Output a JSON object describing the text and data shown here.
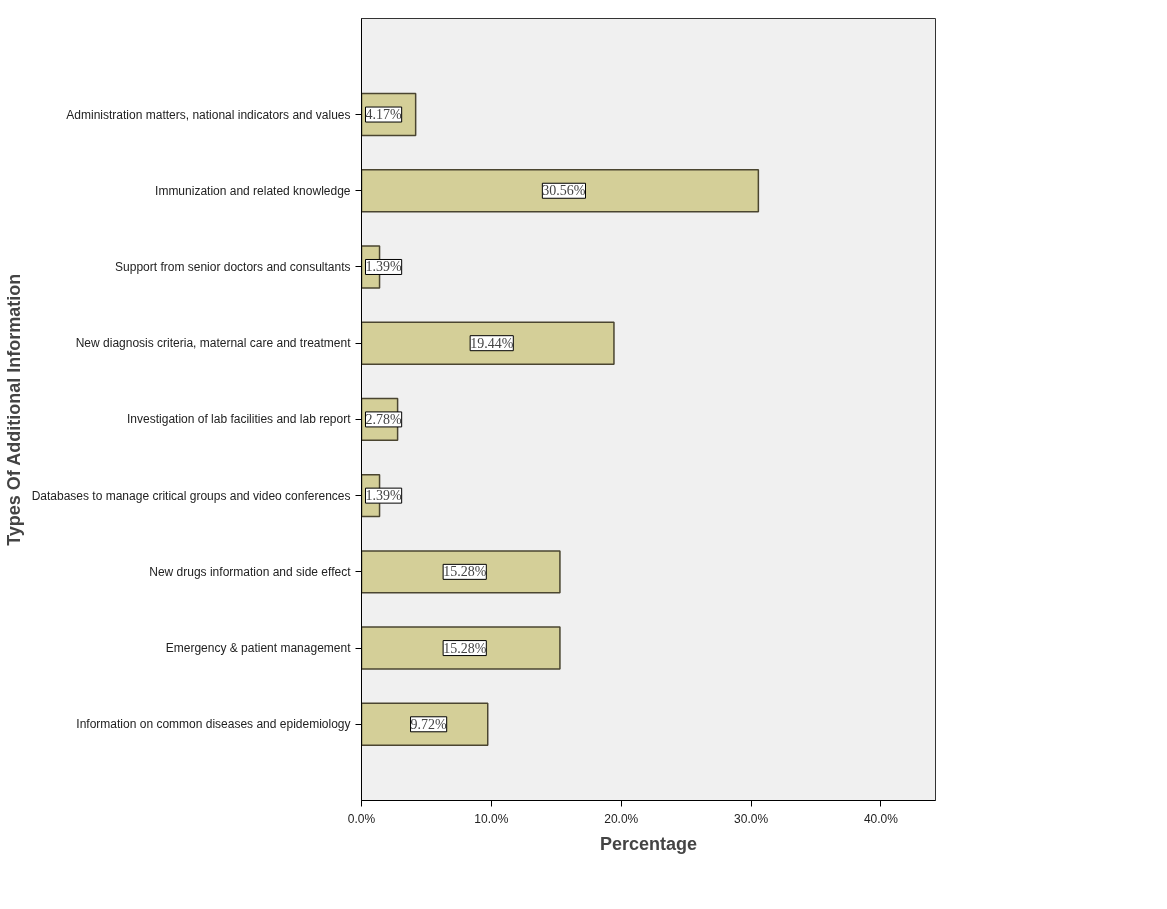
{
  "chart_data": {
    "type": "bar",
    "orientation": "horizontal",
    "xlabel": "Percentage",
    "ylabel": "Types Of Additional Information",
    "categories": [
      "Administration matters, national indicators and values",
      "Immunization and related knowledge",
      "Support from senior doctors and consultants",
      "New diagnosis criteria, maternal care and treatment",
      "Investigation of lab facilities and lab report",
      "Databases to manage critical groups and video conferences",
      "New drugs information and side effect",
      "Emergency & patient management",
      "Information on common diseases and epidemiology"
    ],
    "values": [
      4.17,
      30.56,
      1.39,
      19.44,
      2.78,
      1.39,
      15.28,
      15.28,
      9.72
    ],
    "value_labels": [
      "4.17%",
      "30.56%",
      "1.39%",
      "19.44%",
      "2.78%",
      "1.39%",
      "15.28%",
      "15.28%",
      "9.72%"
    ],
    "color": "#d4cf98",
    "xlim": [
      0,
      44.2
    ],
    "xticks": [
      {
        "value": 0,
        "label": "0.0%"
      },
      {
        "value": 10,
        "label": "10.0%"
      },
      {
        "value": 20,
        "label": "20.0%"
      },
      {
        "value": 30,
        "label": "30.0%"
      },
      {
        "value": 40,
        "label": "40.0%"
      }
    ],
    "grid": false
  }
}
